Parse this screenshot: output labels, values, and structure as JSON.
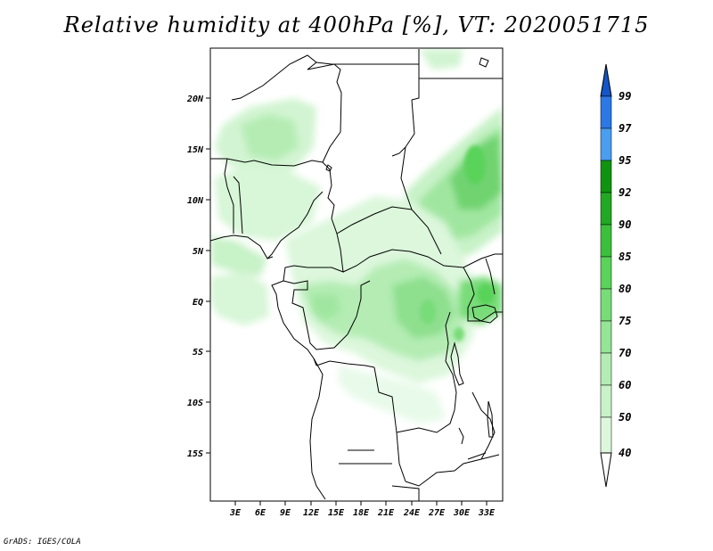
{
  "title": "Relative humidity at 400hPa [%], VT: 2020051715",
  "credit": "GrADS: IGES/COLA",
  "map": {
    "lat_labels": [
      "20N",
      "15N",
      "10N",
      "5N",
      "EQ",
      "5S",
      "10S",
      "15S"
    ],
    "lon_labels": [
      "3E",
      "6E",
      "9E",
      "12E",
      "15E",
      "18E",
      "21E",
      "24E",
      "27E",
      "30E",
      "33E"
    ]
  },
  "colorbar": {
    "labels": [
      "99",
      "97",
      "95",
      "92",
      "90",
      "85",
      "80",
      "75",
      "70",
      "60",
      "50",
      "40"
    ],
    "colors": {
      "40": "#f0fcf0",
      "50": "#dcf7dc",
      "60": "#c8f2c8",
      "70": "#b4ecb4",
      "75": "#96e496",
      "80": "#78dc78",
      "85": "#5ad35a",
      "90": "#3cc03c",
      "92": "#23a823",
      "95": "#109410",
      "97": "#4a9ef0",
      "99": "#2c78e4",
      "over": "#1456c8"
    }
  }
}
